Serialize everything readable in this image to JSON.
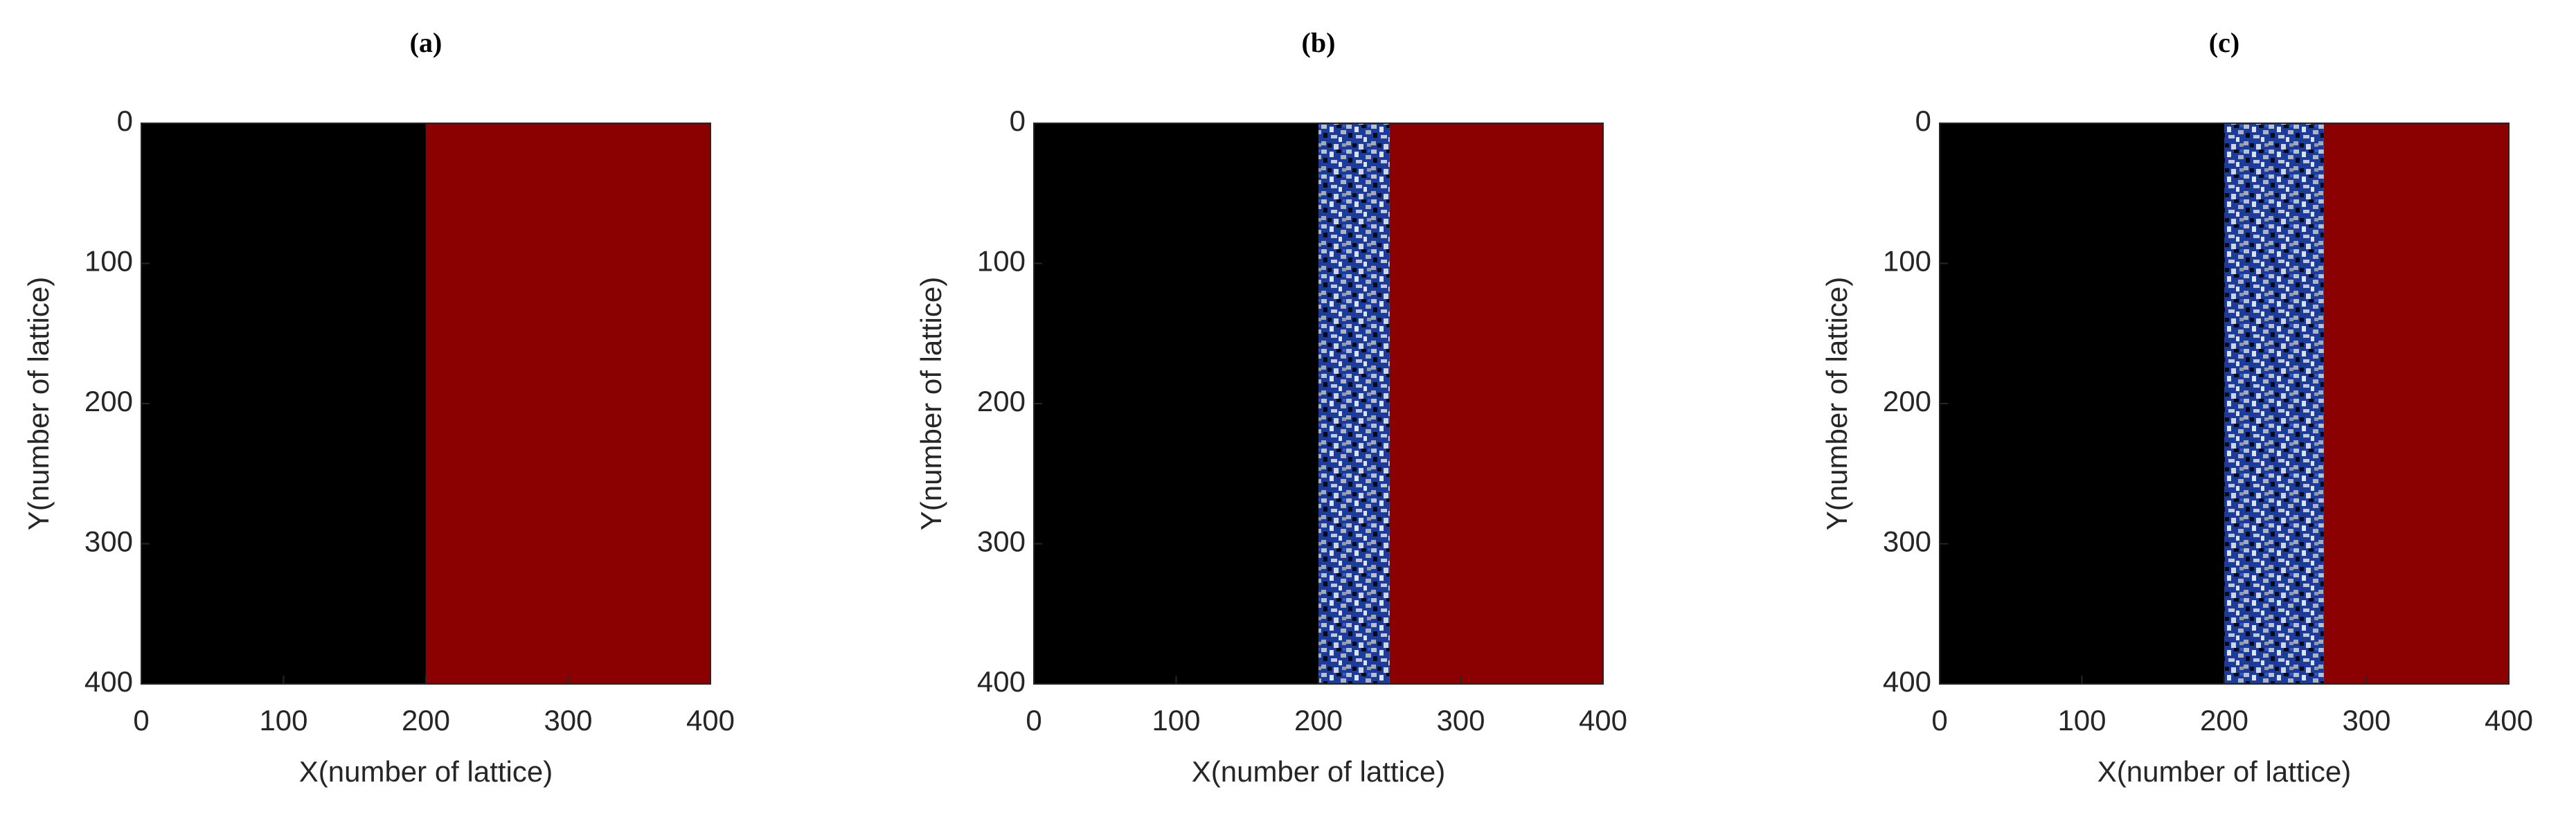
{
  "chart_data": [
    {
      "type": "image",
      "title": "(a)",
      "xlabel": "X(number of lattice)",
      "ylabel": "Y(number of lattice)",
      "xlim": [
        0,
        400
      ],
      "ylim": [
        400,
        0
      ],
      "xticks": [
        0,
        100,
        200,
        300,
        400
      ],
      "yticks": [
        0,
        100,
        200,
        300,
        400
      ],
      "regions": [
        {
          "x": [
            0,
            200
          ],
          "color": "#000000"
        },
        {
          "x": [
            200,
            400
          ],
          "color": "#8b0000"
        }
      ]
    },
    {
      "type": "image",
      "title": "(b)",
      "xlabel": "X(number of lattice)",
      "ylabel": "Y(number of lattice)",
      "xlim": [
        0,
        400
      ],
      "ylim": [
        400,
        0
      ],
      "xticks": [
        0,
        100,
        200,
        300,
        400
      ],
      "yticks": [
        0,
        100,
        200,
        300,
        400
      ],
      "regions": [
        {
          "x": [
            0,
            200
          ],
          "color": "#000000"
        },
        {
          "x": [
            200,
            250
          ],
          "color": "#1c3c9c",
          "texture": "speckled"
        },
        {
          "x": [
            250,
            400
          ],
          "color": "#8b0000"
        }
      ]
    },
    {
      "type": "image",
      "title": "(c)",
      "xlabel": "X(number of lattice)",
      "ylabel": "Y(number of lattice)",
      "xlim": [
        0,
        400
      ],
      "ylim": [
        400,
        0
      ],
      "xticks": [
        0,
        100,
        200,
        300,
        400
      ],
      "yticks": [
        0,
        100,
        200,
        300,
        400
      ],
      "regions": [
        {
          "x": [
            0,
            200
          ],
          "color": "#000000"
        },
        {
          "x": [
            200,
            270
          ],
          "color": "#1c3c9c",
          "texture": "speckled"
        },
        {
          "x": [
            270,
            400
          ],
          "color": "#8b0000"
        }
      ]
    }
  ]
}
